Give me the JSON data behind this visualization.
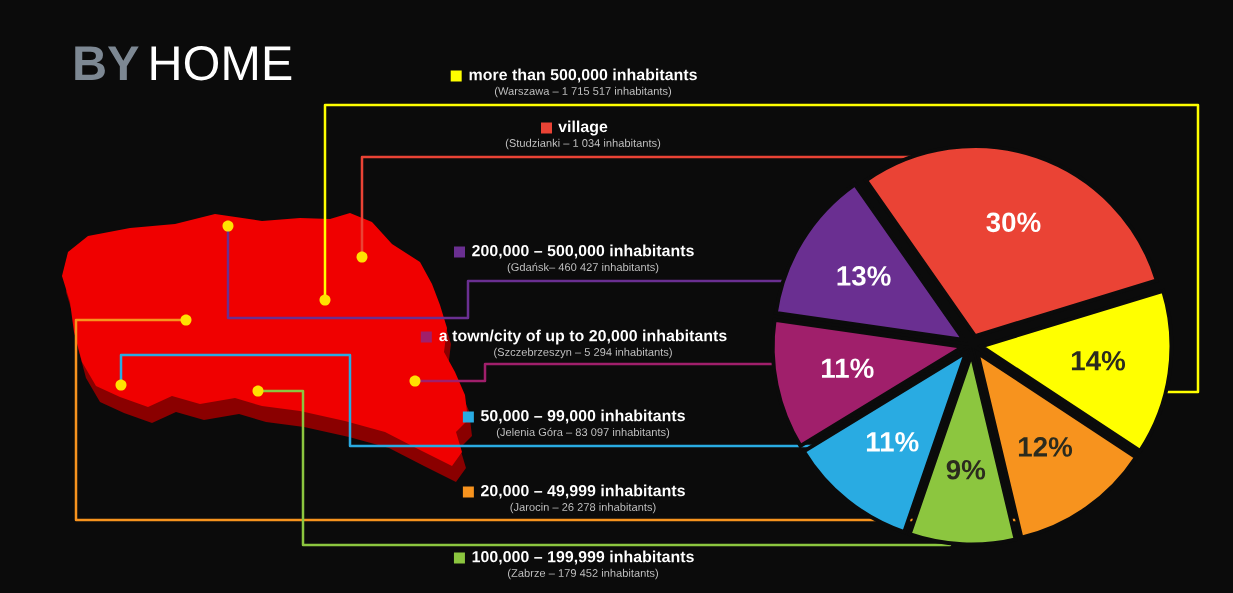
{
  "chart_data": {
    "type": "pie",
    "title": "BY HOME",
    "categories": [
      "village",
      "more than 500,000 inhabitants",
      "20,000 – 49,999 inhabitants",
      "100,000 – 199,999 inhabitants",
      "50,000 – 99,000 inhabitants",
      "a town/city of up to 20,000 inhabitants",
      "200,000 – 500,000 inhabitants"
    ],
    "values": [
      30,
      14,
      12,
      9,
      11,
      11,
      13
    ],
    "colors": [
      "#ea4335",
      "#ffff00",
      "#f7931e",
      "#8cc63f",
      "#29abe2",
      "#a01f6b",
      "#6a2f91"
    ],
    "value_labels": [
      "30%",
      "14%",
      "12%",
      "9%",
      "11%",
      "11%",
      "13%"
    ],
    "legend": "left",
    "annotations": [
      "(Studzianki – 1 034 inhabitants)",
      "(Warszawa – 1 715 517 inhabitants)",
      "(Jarocin – 26 278 inhabitants)",
      "(Zabrze – 179 452 inhabitants)",
      "(Jelenia Góra – 83 097 inhabitants)",
      "(Szczebrzeszyn – 5 294 inhabitants)",
      "(Gdańsk– 460 427 inhabitants)"
    ]
  }
}
